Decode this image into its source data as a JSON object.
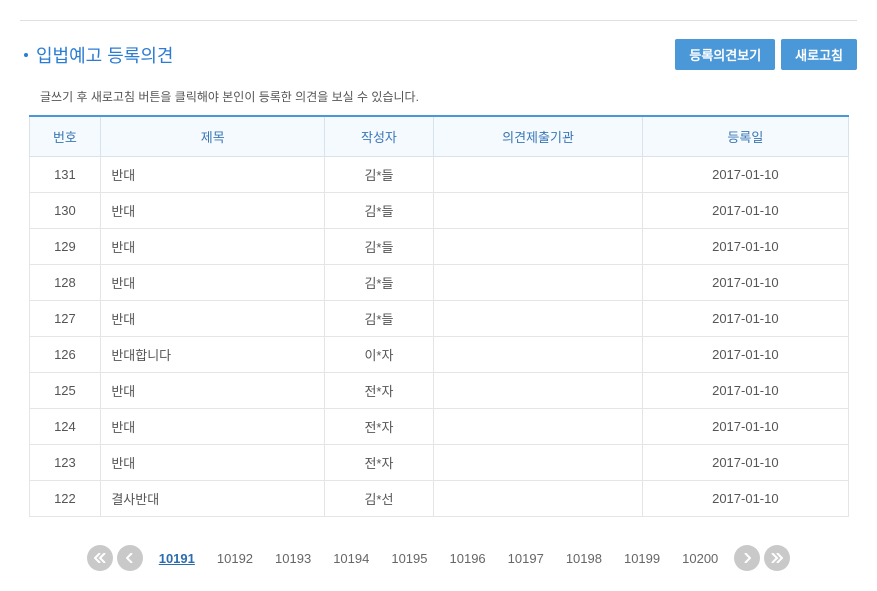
{
  "header": {
    "title": "입법예고 등록의견",
    "buttons": {
      "view": "등록의견보기",
      "refresh": "새로고침"
    }
  },
  "notice": "글쓰기 후 새로고침 버튼을 클릭해야 본인이 등록한 의견을 보실 수 있습니다.",
  "table": {
    "columns": {
      "no": "번호",
      "subject": "제목",
      "author": "작성자",
      "org": "의견제출기관",
      "date": "등록일"
    },
    "rows": [
      {
        "no": "131",
        "subject": "반대",
        "author": "김*들",
        "org": "",
        "date": "2017-01-10"
      },
      {
        "no": "130",
        "subject": "반대",
        "author": "김*들",
        "org": "",
        "date": "2017-01-10"
      },
      {
        "no": "129",
        "subject": "반대",
        "author": "김*들",
        "org": "",
        "date": "2017-01-10"
      },
      {
        "no": "128",
        "subject": "반대",
        "author": "김*들",
        "org": "",
        "date": "2017-01-10"
      },
      {
        "no": "127",
        "subject": "반대",
        "author": "김*들",
        "org": "",
        "date": "2017-01-10"
      },
      {
        "no": "126",
        "subject": "반대합니다",
        "author": "이*자",
        "org": "",
        "date": "2017-01-10"
      },
      {
        "no": "125",
        "subject": "반대",
        "author": "전*자",
        "org": "",
        "date": "2017-01-10"
      },
      {
        "no": "124",
        "subject": "반대",
        "author": "전*자",
        "org": "",
        "date": "2017-01-10"
      },
      {
        "no": "123",
        "subject": "반대",
        "author": "전*자",
        "org": "",
        "date": "2017-01-10"
      },
      {
        "no": "122",
        "subject": "결사반대",
        "author": "김*선",
        "org": "",
        "date": "2017-01-10"
      }
    ]
  },
  "pagination": {
    "pages": [
      "10191",
      "10192",
      "10193",
      "10194",
      "10195",
      "10196",
      "10197",
      "10198",
      "10199",
      "10200"
    ],
    "current": "10191"
  },
  "colors": {
    "accent": "#4a98d8",
    "title": "#2b7cd3",
    "header_bg": "#f5fafe",
    "border": "#d8e3ed"
  }
}
